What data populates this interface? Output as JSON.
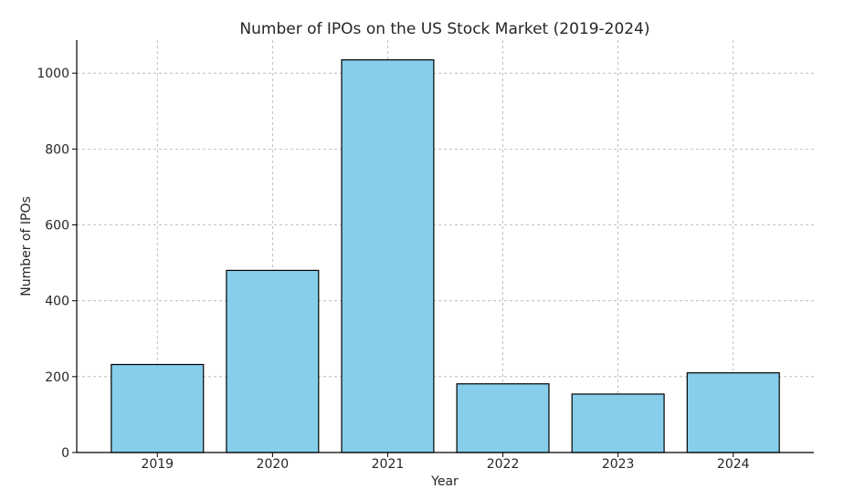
{
  "chart_data": {
    "type": "bar",
    "title": "Number of IPOs on the US Stock Market (2019-2024)",
    "xlabel": "Year",
    "ylabel": "Number of IPOs",
    "categories": [
      "2019",
      "2020",
      "2021",
      "2022",
      "2023",
      "2024"
    ],
    "values": [
      232,
      480,
      1035,
      181,
      154,
      210
    ],
    "ylim": [
      0,
      1087
    ],
    "yticks": [
      0,
      200,
      400,
      600,
      800,
      1000
    ],
    "grid": true,
    "bar_color": "#87CEEB",
    "bar_edge_color": "#000000"
  }
}
